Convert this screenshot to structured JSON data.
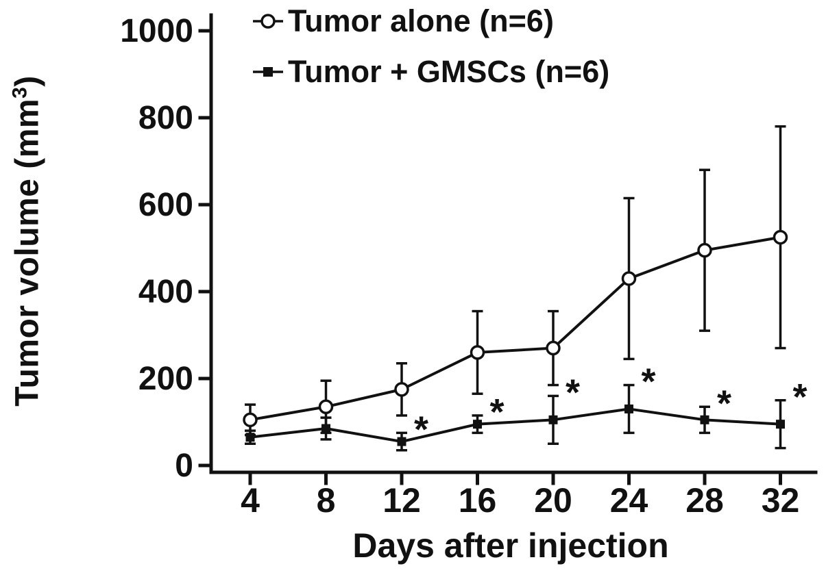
{
  "figure": {
    "background_color": "#ffffff",
    "ink_color": "#111111"
  },
  "chart_data": {
    "type": "line",
    "title": "",
    "xlabel": "Days after injection",
    "ylabel": "Tumor volume (mm³)",
    "ylabel_text": "Tumor volume (mm",
    "ylabel_superscript": "3",
    "ylabel_suffix": ")",
    "x": [
      4,
      8,
      12,
      16,
      20,
      24,
      28,
      32
    ],
    "xlim": [
      4,
      32
    ],
    "ylim": [
      0,
      1000
    ],
    "yticks": [
      0,
      200,
      400,
      600,
      800,
      1000
    ],
    "grid": false,
    "legend_position": "top-left-inside",
    "colors": {
      "line": "#111111",
      "marker_fill_open": "#ffffff",
      "background": "#ffffff"
    },
    "series": [
      {
        "name": "Tumor alone (n=6)",
        "marker": "open-circle",
        "values": [
          105,
          135,
          175,
          260,
          270,
          430,
          495,
          525
        ],
        "errors": [
          35,
          60,
          60,
          95,
          85,
          185,
          185,
          255
        ]
      },
      {
        "name": "Tumor + GMSCs (n=6)",
        "marker": "filled-square",
        "values": [
          65,
          85,
          55,
          95,
          105,
          130,
          105,
          95
        ],
        "errors": [
          15,
          25,
          20,
          20,
          55,
          55,
          30,
          55
        ],
        "significance": [
          false,
          false,
          true,
          true,
          true,
          true,
          true,
          true
        ],
        "significance_symbol": "*"
      }
    ]
  }
}
